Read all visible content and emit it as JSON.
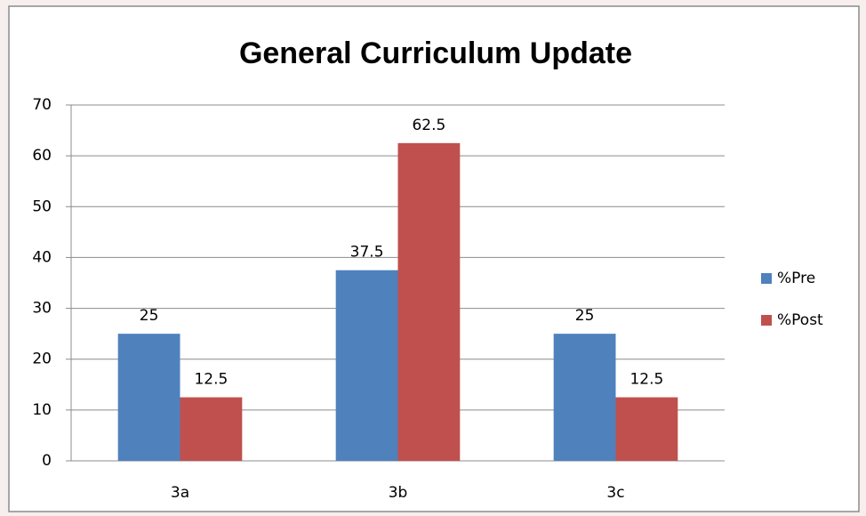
{
  "chart_data": {
    "type": "bar",
    "title": "General Curriculum Update",
    "categories": [
      "3a",
      "3b",
      "3c"
    ],
    "series": [
      {
        "name": "%Pre",
        "color": "#4f81bd",
        "values": [
          25,
          37.5,
          25
        ]
      },
      {
        "name": "%Post",
        "color": "#c0504d",
        "values": [
          12.5,
          62.5,
          12.5
        ]
      }
    ],
    "ylim": [
      0,
      70
    ],
    "yticks": [
      0,
      10,
      20,
      30,
      40,
      50,
      60,
      70
    ],
    "grid": true,
    "legend": "right",
    "data_labels": true
  }
}
